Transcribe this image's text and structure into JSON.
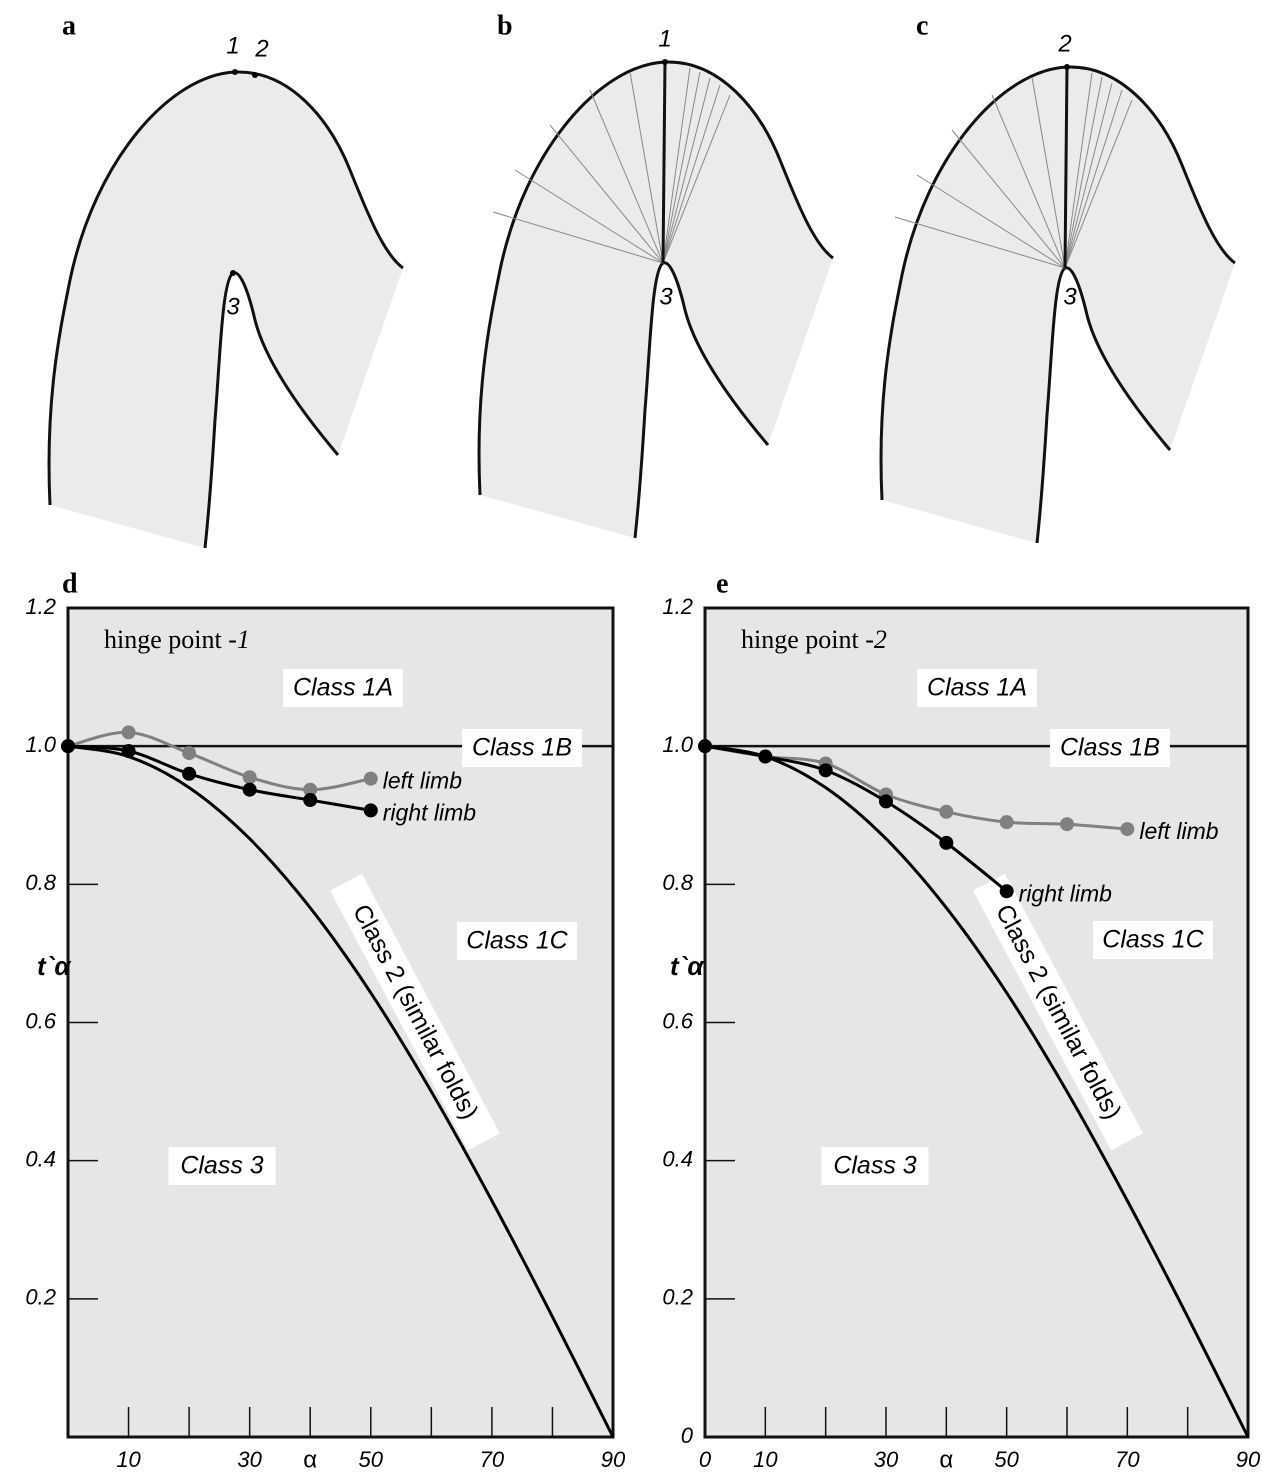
{
  "diagrams": [
    {
      "label": "a",
      "points": [
        "1",
        "2",
        "3"
      ]
    },
    {
      "label": "b",
      "points": [
        "1",
        "3"
      ]
    },
    {
      "label": "c",
      "points": [
        "2",
        "3"
      ]
    }
  ],
  "chart_data": [
    {
      "type": "line",
      "label": "d",
      "annotation": [
        "hinge point -",
        "1"
      ],
      "regions": [
        "Class 1A",
        "Class 1B",
        "Class 1C",
        "Class 3"
      ],
      "xlabel": "α",
      "ylabel": "t`α",
      "xlim": [
        0,
        90
      ],
      "xticks": [
        10,
        30,
        50,
        70,
        90
      ],
      "xminor": [
        20,
        40,
        60,
        80
      ],
      "ylim": [
        0,
        1.2
      ],
      "yticks": [
        0.2,
        0.4,
        0.6,
        0.8,
        {
          "value": 1,
          "label": "1.0"
        },
        1.2
      ],
      "hline": 1,
      "series": [
        {
          "name": "Class 2 (similar folds)",
          "color": "#000000",
          "marker": false,
          "x": [
            0,
            10,
            20,
            30,
            40,
            50,
            60,
            70,
            80,
            90
          ],
          "values": [
            1,
            0.985,
            0.94,
            0.866,
            0.766,
            0.643,
            0.5,
            0.342,
            0.174,
            0
          ]
        },
        {
          "name": "left limb",
          "color": "#808080",
          "marker": true,
          "x": [
            0,
            10,
            20,
            30,
            40,
            50
          ],
          "values": [
            1,
            1.02,
            0.99,
            0.955,
            0.937,
            0.953
          ]
        },
        {
          "name": "right limb",
          "color": "#000000",
          "marker": true,
          "x": [
            0,
            10,
            20,
            30,
            40,
            50
          ],
          "values": [
            1,
            0.993,
            0.96,
            0.937,
            0.922,
            0.907
          ]
        }
      ]
    },
    {
      "type": "line",
      "label": "e",
      "annotation": [
        "hinge point -",
        "2"
      ],
      "regions": [
        "Class 1A",
        "Class 1B",
        "Class 1C",
        "Class 3"
      ],
      "xlabel": "α",
      "ylabel": "t`α",
      "xlim": [
        0,
        90
      ],
      "xticks": [
        0,
        10,
        30,
        50,
        70,
        90
      ],
      "xminor": [
        20,
        40,
        60,
        80
      ],
      "ylim": [
        0,
        1.2
      ],
      "yticks": [
        0,
        0.2,
        0.4,
        0.6,
        0.8,
        {
          "value": 1,
          "label": "1.0"
        },
        1.2
      ],
      "hline": 1,
      "series": [
        {
          "name": "Class 2 (similar folds)",
          "color": "#000000",
          "marker": false,
          "x": [
            0,
            10,
            20,
            30,
            40,
            50,
            60,
            70,
            80,
            90
          ],
          "values": [
            1,
            0.985,
            0.94,
            0.866,
            0.766,
            0.643,
            0.5,
            0.342,
            0.174,
            0
          ]
        },
        {
          "name": "left limb",
          "color": "#808080",
          "marker": true,
          "x": [
            0,
            10,
            20,
            30,
            40,
            50,
            60,
            70
          ],
          "values": [
            1,
            0.985,
            0.975,
            0.93,
            0.905,
            0.89,
            0.887,
            0.88
          ]
        },
        {
          "name": "right limb",
          "color": "#000000",
          "marker": true,
          "x": [
            0,
            10,
            20,
            30,
            40,
            50
          ],
          "values": [
            1,
            0.985,
            0.965,
            0.92,
            0.86,
            0.79
          ]
        }
      ]
    }
  ]
}
